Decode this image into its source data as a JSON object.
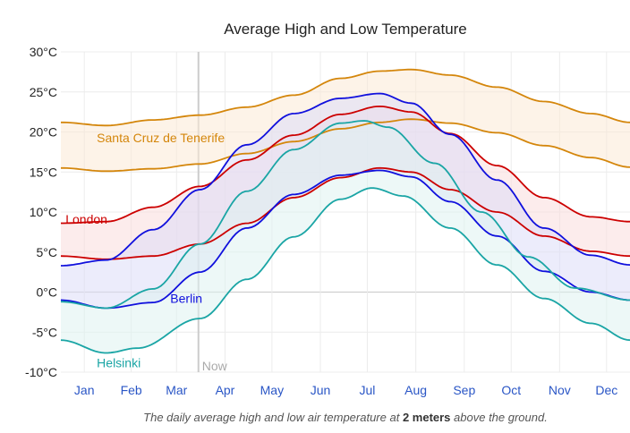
{
  "chart_data": {
    "type": "area",
    "title": "Average High and Low Temperature",
    "caption_pre": "The daily average high and low air temperature at ",
    "caption_value": "2 meters",
    "caption_post": " above the ground.",
    "xlabel": "",
    "ylabel": "",
    "ylim": [
      -10,
      30
    ],
    "yticks": [
      -10,
      -5,
      0,
      5,
      10,
      15,
      20,
      25,
      30
    ],
    "ytick_labels": [
      "-10°C",
      "-5°C",
      "0°C",
      "5°C",
      "10°C",
      "15°C",
      "20°C",
      "25°C",
      "30°C"
    ],
    "xlim": [
      1,
      365
    ],
    "xtick_days": [
      16,
      46,
      75,
      106,
      136,
      167,
      197,
      228,
      259,
      289,
      320,
      350
    ],
    "xtick_labels": [
      "Jan",
      "Feb",
      "Mar",
      "Apr",
      "May",
      "Jun",
      "Jul",
      "Aug",
      "Sep",
      "Oct",
      "Nov",
      "Dec"
    ],
    "grid": true,
    "now_marker": {
      "day": 89,
      "label": "Now"
    },
    "series": [
      {
        "name": "Santa Cruz de Tenerife",
        "color": "#d4860b",
        "fill": "#fbe9d6",
        "high": [
          [
            1,
            21.2
          ],
          [
            30,
            20.8
          ],
          [
            60,
            21.5
          ],
          [
            90,
            22.1
          ],
          [
            120,
            23.1
          ],
          [
            150,
            24.6
          ],
          [
            180,
            26.7
          ],
          [
            205,
            27.6
          ],
          [
            225,
            27.8
          ],
          [
            250,
            27.1
          ],
          [
            280,
            25.6
          ],
          [
            310,
            23.8
          ],
          [
            340,
            22.3
          ],
          [
            365,
            21.2
          ]
        ],
        "low": [
          [
            1,
            15.5
          ],
          [
            30,
            15.1
          ],
          [
            60,
            15.4
          ],
          [
            90,
            16.0
          ],
          [
            120,
            17.3
          ],
          [
            150,
            18.8
          ],
          [
            180,
            20.4
          ],
          [
            205,
            21.2
          ],
          [
            225,
            21.6
          ],
          [
            250,
            21.1
          ],
          [
            280,
            19.9
          ],
          [
            310,
            18.3
          ],
          [
            340,
            16.8
          ],
          [
            365,
            15.6
          ]
        ],
        "label_day": 24,
        "label_value": 19.3
      },
      {
        "name": "London",
        "color": "#cc0000",
        "fill": "#f9dddd",
        "high": [
          [
            1,
            8.6
          ],
          [
            30,
            8.8
          ],
          [
            60,
            10.6
          ],
          [
            90,
            13.2
          ],
          [
            120,
            16.5
          ],
          [
            150,
            19.6
          ],
          [
            180,
            22.2
          ],
          [
            205,
            23.2
          ],
          [
            225,
            22.5
          ],
          [
            250,
            19.8
          ],
          [
            280,
            15.8
          ],
          [
            310,
            11.8
          ],
          [
            340,
            9.4
          ],
          [
            365,
            8.8
          ]
        ],
        "low": [
          [
            1,
            4.5
          ],
          [
            30,
            4.1
          ],
          [
            60,
            4.5
          ],
          [
            90,
            6.0
          ],
          [
            120,
            8.6
          ],
          [
            150,
            11.8
          ],
          [
            180,
            14.3
          ],
          [
            205,
            15.5
          ],
          [
            225,
            15.0
          ],
          [
            250,
            12.8
          ],
          [
            280,
            10.0
          ],
          [
            310,
            7.0
          ],
          [
            340,
            5.1
          ],
          [
            365,
            4.5
          ]
        ],
        "label_day": 4,
        "label_value": 9.1
      },
      {
        "name": "Berlin",
        "color": "#1010dd",
        "fill": "#dcdcf8",
        "high": [
          [
            1,
            3.3
          ],
          [
            30,
            4.0
          ],
          [
            60,
            7.8
          ],
          [
            90,
            12.8
          ],
          [
            120,
            18.4
          ],
          [
            150,
            22.3
          ],
          [
            180,
            24.2
          ],
          [
            205,
            24.8
          ],
          [
            225,
            23.6
          ],
          [
            250,
            19.7
          ],
          [
            280,
            14.0
          ],
          [
            310,
            8.0
          ],
          [
            340,
            4.6
          ],
          [
            365,
            3.4
          ]
        ],
        "low": [
          [
            1,
            -1.0
          ],
          [
            30,
            -2.0
          ],
          [
            60,
            -1.3
          ],
          [
            90,
            2.5
          ],
          [
            120,
            8.0
          ],
          [
            150,
            12.2
          ],
          [
            180,
            14.6
          ],
          [
            205,
            15.2
          ],
          [
            225,
            14.4
          ],
          [
            250,
            11.3
          ],
          [
            280,
            7.0
          ],
          [
            310,
            2.6
          ],
          [
            340,
            0.0
          ],
          [
            365,
            -1.0
          ]
        ],
        "label_day": 71,
        "label_value": -0.8
      },
      {
        "name": "Helsinki",
        "color": "#1aa5a5",
        "fill": "#dff2f1",
        "high": [
          [
            1,
            -1.2
          ],
          [
            30,
            -2.0
          ],
          [
            60,
            0.4
          ],
          [
            90,
            6.0
          ],
          [
            120,
            12.6
          ],
          [
            150,
            17.8
          ],
          [
            180,
            21.1
          ],
          [
            195,
            21.4
          ],
          [
            210,
            20.6
          ],
          [
            240,
            16.1
          ],
          [
            270,
            10.0
          ],
          [
            300,
            4.4
          ],
          [
            330,
            0.5
          ],
          [
            365,
            -1.0
          ]
        ],
        "low": [
          [
            1,
            -6.0
          ],
          [
            30,
            -7.6
          ],
          [
            50,
            -7.0
          ],
          [
            90,
            -3.3
          ],
          [
            120,
            1.6
          ],
          [
            150,
            6.9
          ],
          [
            180,
            11.6
          ],
          [
            200,
            13.0
          ],
          [
            220,
            12.0
          ],
          [
            250,
            8.0
          ],
          [
            280,
            3.4
          ],
          [
            310,
            -0.8
          ],
          [
            340,
            -3.9
          ],
          [
            365,
            -6.0
          ]
        ],
        "label_day": 24,
        "label_value": -8.8
      }
    ]
  }
}
